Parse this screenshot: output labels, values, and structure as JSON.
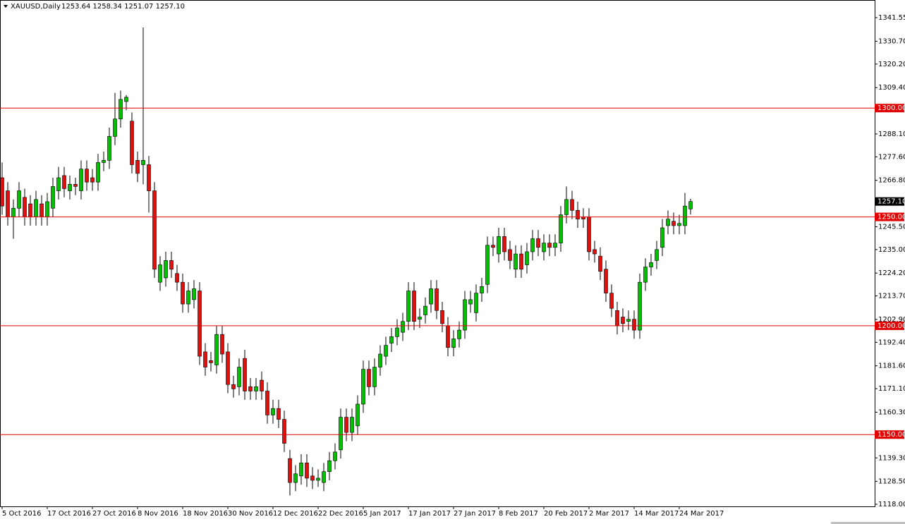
{
  "chart_data": {
    "type": "candlestick",
    "title": "XAUUSD,Daily",
    "subtitle": "1253.64 1258.34 1251.07 1257.10",
    "categories": [
      "5 Oct 2016",
      null,
      null,
      null,
      null,
      null,
      null,
      null,
      "17 Oct 2016",
      null,
      null,
      null,
      null,
      null,
      null,
      null,
      "27 Oct 2016",
      null,
      null,
      null,
      null,
      null,
      null,
      null,
      "8 Nov 2016",
      null,
      null,
      null,
      null,
      null,
      null,
      null,
      "18 Nov 2016",
      null,
      null,
      null,
      null,
      null,
      null,
      null,
      "30 Nov 2016",
      null,
      null,
      null,
      null,
      null,
      null,
      null,
      "12 Dec 2016",
      null,
      null,
      null,
      null,
      null,
      null,
      null,
      "22 Dec 2016",
      null,
      null,
      null,
      null,
      null,
      null,
      null,
      "5 Jan 2017",
      null,
      null,
      null,
      null,
      null,
      null,
      null,
      "17 Jan 2017",
      null,
      null,
      null,
      null,
      null,
      null,
      null,
      "27 Jan 2017",
      null,
      null,
      null,
      null,
      null,
      null,
      null,
      "8 Feb 2017",
      null,
      null,
      null,
      null,
      null,
      null,
      null,
      "20 Feb 2017",
      null,
      null,
      null,
      null,
      null,
      null,
      null,
      "2 Mar 2017",
      null,
      null,
      null,
      null,
      null,
      null,
      null,
      "14 Mar 2017",
      null,
      null,
      null,
      null,
      null,
      null,
      null,
      "24 Mar 2017",
      null,
      null
    ],
    "open": [
      1268,
      1262,
      1250,
      1254,
      1259,
      1256,
      1250,
      1256,
      1250,
      1254,
      1262,
      1269,
      1262,
      1265,
      1262,
      1272,
      1268,
      1266,
      1275,
      1276,
      1287,
      1295,
      1303,
      1294,
      1276,
      1274,
      1274,
      1262,
      1220,
      1222,
      1230,
      1224,
      1220,
      1210,
      1212,
      1216,
      1188,
      1184,
      1182,
      1196,
      1188,
      1173,
      1172,
      1185,
      1172,
      1170,
      1175,
      1170,
      1159,
      1162,
      1157,
      1139,
      1128,
      1131,
      1137,
      1131,
      1129,
      1128,
      1133,
      1138,
      1143,
      1158,
      1151,
      1154,
      1164,
      1180,
      1172,
      1181,
      1186,
      1192,
      1195,
      1197,
      1202,
      1216,
      1203,
      1205,
      1210,
      1217,
      1207,
      1200,
      1190,
      1194,
      1198,
      1210,
      1206,
      1215,
      1219,
      1237,
      1233,
      1241,
      1235,
      1226,
      1233,
      1228,
      1234,
      1240,
      1234,
      1238,
      1236,
      1238,
      1251,
      1258,
      1253,
      1250,
      1250,
      1235,
      1232,
      1226,
      1215,
      1207,
      1204,
      1202,
      1203,
      1198,
      1220,
      1227,
      1230,
      1236,
      1246,
      1248,
      1246,
      1246,
      1253.64
    ],
    "high": [
      1275,
      1266,
      1258,
      1266,
      1263,
      1260,
      1262,
      1260,
      1261,
      1268,
      1273,
      1273,
      1269,
      1268,
      1276,
      1276,
      1272,
      1279,
      1280,
      1291,
      1307,
      1308,
      1306,
      1298,
      1280,
      1337,
      1278,
      1266,
      1232,
      1234,
      1234,
      1228,
      1224,
      1220,
      1221,
      1220,
      1192,
      1188,
      1200,
      1200,
      1192,
      1177,
      1185,
      1189,
      1176,
      1176,
      1179,
      1174,
      1166,
      1166,
      1161,
      1143,
      1136,
      1141,
      1141,
      1135,
      1134,
      1137,
      1142,
      1146,
      1162,
      1162,
      1162,
      1168,
      1184,
      1184,
      1185,
      1191,
      1195,
      1199,
      1203,
      1206,
      1220,
      1220,
      1208,
      1213,
      1221,
      1221,
      1211,
      1204,
      1198,
      1202,
      1216,
      1216,
      1219,
      1222,
      1241,
      1241,
      1245,
      1245,
      1239,
      1237,
      1237,
      1238,
      1244,
      1244,
      1242,
      1242,
      1242,
      1255,
      1264,
      1262,
      1257,
      1254,
      1254,
      1239,
      1236,
      1230,
      1219,
      1211,
      1208,
      1207,
      1207,
      1224,
      1231,
      1233,
      1239,
      1249,
      1253,
      1252,
      1251,
      1261,
      1258.34
    ],
    "low": [
      1251,
      1246,
      1240,
      1250,
      1246,
      1246,
      1246,
      1246,
      1246,
      1250,
      1258,
      1259,
      1258,
      1260,
      1258,
      1262,
      1262,
      1262,
      1271,
      1272,
      1283,
      1291,
      1299,
      1270,
      1266,
      1265,
      1252,
      1222,
      1216,
      1218,
      1222,
      1216,
      1206,
      1206,
      1208,
      1182,
      1177,
      1179,
      1178,
      1183,
      1169,
      1167,
      1168,
      1166,
      1166,
      1166,
      1166,
      1155,
      1155,
      1153,
      1142,
      1122,
      1124,
      1127,
      1126,
      1125,
      1126,
      1124,
      1129,
      1134,
      1139,
      1147,
      1147,
      1150,
      1160,
      1168,
      1168,
      1177,
      1182,
      1188,
      1191,
      1193,
      1198,
      1198,
      1199,
      1201,
      1206,
      1203,
      1197,
      1186,
      1186,
      1190,
      1194,
      1206,
      1202,
      1211,
      1215,
      1232,
      1229,
      1230,
      1226,
      1222,
      1222,
      1224,
      1230,
      1232,
      1230,
      1232,
      1232,
      1234,
      1247,
      1249,
      1245,
      1245,
      1230,
      1229,
      1221,
      1211,
      1204,
      1196,
      1197,
      1198,
      1194,
      1194,
      1216,
      1223,
      1226,
      1232,
      1242,
      1242,
      1242,
      1242,
      1251.07
    ],
    "close": [
      1255,
      1250,
      1254,
      1262,
      1250,
      1250,
      1258,
      1250,
      1257,
      1264,
      1268,
      1263,
      1265,
      1264,
      1272,
      1266,
      1266,
      1275,
      1276,
      1287,
      1295,
      1304,
      1305,
      1274,
      1270,
      1276,
      1262,
      1226,
      1228,
      1230,
      1226,
      1220,
      1210,
      1216,
      1217,
      1186,
      1181,
      1183,
      1196,
      1187,
      1173,
      1171,
      1181,
      1170,
      1170,
      1172,
      1170,
      1159,
      1162,
      1157,
      1146,
      1128,
      1132,
      1137,
      1130,
      1129,
      1130,
      1133,
      1138,
      1142,
      1158,
      1151,
      1158,
      1164,
      1180,
      1172,
      1181,
      1187,
      1191,
      1195,
      1199,
      1202,
      1216,
      1202,
      1204,
      1209,
      1217,
      1207,
      1201,
      1190,
      1194,
      1198,
      1212,
      1212,
      1215,
      1218,
      1237,
      1236,
      1241,
      1234,
      1230,
      1233,
      1226,
      1234,
      1240,
      1236,
      1238,
      1236,
      1238,
      1251,
      1258,
      1253,
      1249,
      1249,
      1234,
      1233,
      1225,
      1215,
      1208,
      1200,
      1201,
      1203,
      1198,
      1220,
      1227,
      1229,
      1235,
      1245,
      1249,
      1246,
      1247,
      1255,
      1257.1
    ],
    "up_color": "#00c000",
    "down_color": "#e01010",
    "ylim": [
      1117.03,
      1349.65
    ],
    "yticks": [
      {
        "value": 1341.55,
        "label": "1341.55"
      },
      {
        "value": 1330.7,
        "label": "1330.70"
      },
      {
        "value": 1320.2,
        "label": "1320.20"
      },
      {
        "value": 1309.4,
        "label": "1309.40"
      },
      {
        "value": 1288.1,
        "label": "1288.10"
      },
      {
        "value": 1277.6,
        "label": "1277.60"
      },
      {
        "value": 1266.8,
        "label": "1266.80"
      },
      {
        "value": 1245.5,
        "label": "1245.50"
      },
      {
        "value": 1235,
        "label": "1235.00"
      },
      {
        "value": 1224.2,
        "label": "1224.20"
      },
      {
        "value": 1213.7,
        "label": "1213.70"
      },
      {
        "value": 1202.9,
        "label": "1202.90"
      },
      {
        "value": 1192.4,
        "label": "1192.40"
      },
      {
        "value": 1181.6,
        "label": "1181.60"
      },
      {
        "value": 1171.1,
        "label": "1171.10"
      },
      {
        "value": 1160.3,
        "label": "1160.30"
      },
      {
        "value": 1139.3,
        "label": "1139.30"
      },
      {
        "value": 1128.5,
        "label": "1128.50"
      },
      {
        "value": 1118,
        "label": "1118.00"
      }
    ],
    "levels": [
      {
        "value": 1300,
        "label": "1300.00"
      },
      {
        "value": 1250,
        "label": "1250.00"
      },
      {
        "value": 1200,
        "label": "1200.00"
      },
      {
        "value": 1150,
        "label": "1150.00"
      }
    ],
    "level_color": "#e00000",
    "current_price": {
      "value": 1257.1,
      "label": "1257.10"
    }
  }
}
